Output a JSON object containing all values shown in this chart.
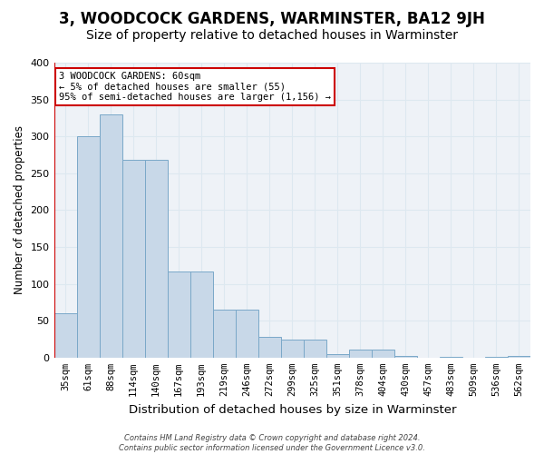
{
  "title": "3, WOODCOCK GARDENS, WARMINSTER, BA12 9JH",
  "subtitle": "Size of property relative to detached houses in Warminster",
  "xlabel": "Distribution of detached houses by size in Warminster",
  "ylabel": "Number of detached properties",
  "bar_values": [
    60,
    300,
    330,
    268,
    268,
    117,
    117,
    65,
    65,
    28,
    25,
    25,
    5,
    11,
    11,
    2,
    0,
    1,
    0,
    1,
    2
  ],
  "bin_labels": [
    "35sqm",
    "61sqm",
    "88sqm",
    "114sqm",
    "140sqm",
    "167sqm",
    "193sqm",
    "219sqm",
    "246sqm",
    "272sqm",
    "299sqm",
    "325sqm",
    "351sqm",
    "378sqm",
    "404sqm",
    "430sqm",
    "457sqm",
    "483sqm",
    "509sqm",
    "536sqm",
    "562sqm"
  ],
  "bar_color": "#c8d8e8",
  "bar_edge_color": "#7aa8c8",
  "annotation_box_text": "3 WOODCOCK GARDENS: 60sqm\n← 5% of detached houses are smaller (55)\n95% of semi-detached houses are larger (1,156) →",
  "annotation_box_color": "#cc0000",
  "annotation_line_color": "#cc0000",
  "ylim": [
    0,
    400
  ],
  "yticks": [
    0,
    50,
    100,
    150,
    200,
    250,
    300,
    350,
    400
  ],
  "grid_color": "#dde8f0",
  "background_color": "#eef2f7",
  "title_fontsize": 12,
  "subtitle_fontsize": 10,
  "xlabel_fontsize": 9.5,
  "ylabel_fontsize": 8.5,
  "footer_line1": "Contains HM Land Registry data © Crown copyright and database right 2024.",
  "footer_line2": "Contains public sector information licensed under the Government Licence v3.0."
}
